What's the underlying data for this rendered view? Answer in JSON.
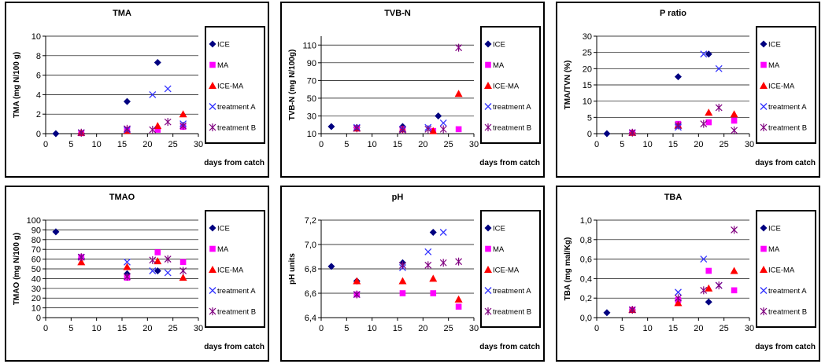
{
  "chart_data": [
    {
      "type": "scatter",
      "title": "TMA",
      "ylabel": "TMA (mg N/100 g)",
      "xlabel": "days from catch",
      "xlim": [
        0,
        30
      ],
      "xticks": [
        0,
        5,
        10,
        15,
        20,
        25,
        30
      ],
      "xtick_labels": [
        "0",
        "5",
        "10",
        "15",
        "20",
        "25",
        "30"
      ],
      "ylim": [
        0,
        10
      ],
      "yticks": [
        0,
        2,
        4,
        6,
        8,
        10
      ],
      "ytick_labels": [
        "0",
        "2",
        "4",
        "6",
        "8",
        "10"
      ],
      "grid": true,
      "legend": "right",
      "series": [
        {
          "name": "ICE",
          "color": "#000080",
          "marker": "diamond",
          "points": [
            [
              2,
              0
            ],
            [
              7,
              0.05
            ],
            [
              16,
              3.3
            ],
            [
              22,
              7.3
            ]
          ]
        },
        {
          "name": "MA",
          "color": "#FF00FF",
          "marker": "square",
          "points": [
            [
              7,
              0.05
            ],
            [
              16,
              0.4
            ],
            [
              22,
              0.4
            ],
            [
              27,
              0.7
            ]
          ]
        },
        {
          "name": "ICE-MA",
          "color": "#FF0000",
          "marker": "triangle",
          "points": [
            [
              7,
              0.1
            ],
            [
              16,
              0.3
            ],
            [
              22,
              0.8
            ],
            [
              27,
              2.0
            ]
          ]
        },
        {
          "name": "treatment A",
          "color": "#3333FF",
          "marker": "x",
          "points": [
            [
              7,
              0.1
            ],
            [
              16,
              0.4
            ],
            [
              21,
              4.0
            ],
            [
              24,
              4.6
            ],
            [
              27,
              1.0
            ]
          ]
        },
        {
          "name": "treatment B",
          "color": "#800080",
          "marker": "asterisk",
          "points": [
            [
              7,
              0.1
            ],
            [
              16,
              0.5
            ],
            [
              21,
              0.4
            ],
            [
              24,
              1.2
            ],
            [
              27,
              0.8
            ]
          ]
        }
      ]
    },
    {
      "type": "scatter",
      "title": "TVB-N",
      "ylabel": "TVB-N (mg N/100g)",
      "xlabel": "days from catch",
      "xlim": [
        0,
        30
      ],
      "xticks": [
        0,
        5,
        10,
        15,
        20,
        25,
        30
      ],
      "xtick_labels": [
        "0",
        "5",
        "10",
        "15",
        "20",
        "25",
        "30"
      ],
      "ylim": [
        10,
        120
      ],
      "yticks": [
        10,
        30,
        50,
        70,
        90,
        110
      ],
      "ytick_labels": [
        "10",
        "30",
        "50",
        "70",
        "90",
        "110"
      ],
      "grid": true,
      "legend": "right",
      "series": [
        {
          "name": "ICE",
          "color": "#000080",
          "marker": "diamond",
          "points": [
            [
              2,
              18
            ],
            [
              7,
              17
            ],
            [
              16,
              18
            ],
            [
              23,
              30
            ]
          ]
        },
        {
          "name": "MA",
          "color": "#FF00FF",
          "marker": "square",
          "points": [
            [
              7,
              16
            ],
            [
              16,
              15
            ],
            [
              22,
              13
            ],
            [
              27,
              15
            ]
          ]
        },
        {
          "name": "ICE-MA",
          "color": "#FF0000",
          "marker": "triangle",
          "points": [
            [
              7,
              16
            ],
            [
              16,
              15
            ],
            [
              22,
              13
            ],
            [
              27,
              55
            ]
          ]
        },
        {
          "name": "treatment A",
          "color": "#3333FF",
          "marker": "x",
          "points": [
            [
              7,
              17
            ],
            [
              16,
              15
            ],
            [
              21,
              17
            ],
            [
              24,
              22
            ]
          ]
        },
        {
          "name": "treatment B",
          "color": "#800080",
          "marker": "asterisk",
          "points": [
            [
              7,
              16
            ],
            [
              16,
              14
            ],
            [
              21,
              15
            ],
            [
              24,
              15
            ],
            [
              27,
              107
            ]
          ]
        }
      ]
    },
    {
      "type": "scatter",
      "title": "P ratio",
      "ylabel": "TMA/TVN (%)",
      "xlabel": "days from catch",
      "xlim": [
        0,
        30
      ],
      "xticks": [
        0,
        5,
        10,
        15,
        20,
        25,
        30
      ],
      "xtick_labels": [
        "0",
        "5",
        "10",
        "15",
        "20",
        "25",
        "30"
      ],
      "ylim": [
        0,
        30
      ],
      "yticks": [
        0,
        5,
        10,
        15,
        20,
        25,
        30
      ],
      "ytick_labels": [
        "0",
        "5",
        "10",
        "15",
        "20",
        "25",
        "30"
      ],
      "grid": true,
      "legend": "right",
      "series": [
        {
          "name": "ICE",
          "color": "#000080",
          "marker": "diamond",
          "points": [
            [
              2,
              0
            ],
            [
              7,
              0.3
            ],
            [
              16,
              17.5
            ],
            [
              22,
              24.5
            ]
          ]
        },
        {
          "name": "MA",
          "color": "#FF00FF",
          "marker": "square",
          "points": [
            [
              7,
              0.3
            ],
            [
              16,
              3
            ],
            [
              22,
              3.5
            ],
            [
              27,
              4
            ]
          ]
        },
        {
          "name": "ICE-MA",
          "color": "#FF0000",
          "marker": "triangle",
          "points": [
            [
              7,
              0.3
            ],
            [
              16,
              2.5
            ],
            [
              22,
              6.5
            ],
            [
              27,
              6
            ]
          ]
        },
        {
          "name": "treatment A",
          "color": "#3333FF",
          "marker": "x",
          "points": [
            [
              7,
              0.3
            ],
            [
              16,
              2
            ],
            [
              21,
              24.5
            ],
            [
              24,
              20
            ]
          ]
        },
        {
          "name": "treatment B",
          "color": "#800080",
          "marker": "asterisk",
          "points": [
            [
              7,
              0.3
            ],
            [
              16,
              2.5
            ],
            [
              21,
              3
            ],
            [
              24,
              8
            ],
            [
              27,
              1
            ]
          ]
        }
      ]
    },
    {
      "type": "scatter",
      "title": "TMAO",
      "ylabel": "TMAO (mg N/100 g)",
      "xlabel": "days from catch",
      "xlim": [
        0,
        30
      ],
      "xticks": [
        0,
        5,
        10,
        15,
        20,
        25,
        30
      ],
      "xtick_labels": [
        "0",
        "5",
        "10",
        "15",
        "20",
        "25",
        "30"
      ],
      "ylim": [
        0,
        100
      ],
      "yticks": [
        0,
        10,
        20,
        30,
        40,
        50,
        60,
        70,
        80,
        90,
        100
      ],
      "ytick_labels": [
        "0",
        "10",
        "20",
        "30",
        "40",
        "50",
        "60",
        "70",
        "80",
        "90",
        "100"
      ],
      "grid": true,
      "legend": "right",
      "series": [
        {
          "name": "ICE",
          "color": "#000080",
          "marker": "diamond",
          "points": [
            [
              2,
              88
            ],
            [
              7,
              61
            ],
            [
              16,
              45
            ],
            [
              22,
              48
            ]
          ]
        },
        {
          "name": "MA",
          "color": "#FF00FF",
          "marker": "square",
          "points": [
            [
              7,
              62
            ],
            [
              16,
              41
            ],
            [
              22,
              67
            ],
            [
              27,
              57
            ]
          ]
        },
        {
          "name": "ICE-MA",
          "color": "#FF0000",
          "marker": "triangle",
          "points": [
            [
              7,
              57
            ],
            [
              16,
              52
            ],
            [
              22,
              58
            ],
            [
              27,
              41
            ]
          ]
        },
        {
          "name": "treatment A",
          "color": "#3333FF",
          "marker": "x",
          "points": [
            [
              7,
              62
            ],
            [
              16,
              57
            ],
            [
              21,
              48
            ],
            [
              24,
              46
            ]
          ]
        },
        {
          "name": "treatment B",
          "color": "#800080",
          "marker": "asterisk",
          "points": [
            [
              7,
              62
            ],
            [
              16,
              42
            ],
            [
              21,
              59
            ],
            [
              24,
              60
            ],
            [
              27,
              48
            ]
          ]
        }
      ]
    },
    {
      "type": "scatter",
      "title": "pH",
      "ylabel": "pH units",
      "xlabel": "days from catch",
      "xlim": [
        0,
        30
      ],
      "xticks": [
        0,
        5,
        10,
        15,
        20,
        25,
        30
      ],
      "xtick_labels": [
        "0",
        "5",
        "10",
        "15",
        "20",
        "25",
        "30"
      ],
      "ylim": [
        6.4,
        7.2
      ],
      "yticks": [
        6.4,
        6.6,
        6.8,
        7.0,
        7.2
      ],
      "ytick_labels": [
        "6,4",
        "6,6",
        "6,8",
        "7,0",
        "7,2"
      ],
      "grid": false,
      "legend": "right",
      "series": [
        {
          "name": "ICE",
          "color": "#000080",
          "marker": "diamond",
          "points": [
            [
              2,
              6.82
            ],
            [
              7,
              6.7
            ],
            [
              16,
              6.85
            ],
            [
              22,
              7.1
            ]
          ]
        },
        {
          "name": "MA",
          "color": "#FF00FF",
          "marker": "square",
          "points": [
            [
              7,
              6.59
            ],
            [
              16,
              6.6
            ],
            [
              22,
              6.6
            ],
            [
              27,
              6.49
            ]
          ]
        },
        {
          "name": "ICE-MA",
          "color": "#FF0000",
          "marker": "triangle",
          "points": [
            [
              7,
              6.7
            ],
            [
              16,
              6.7
            ],
            [
              22,
              6.72
            ],
            [
              27,
              6.55
            ]
          ]
        },
        {
          "name": "treatment A",
          "color": "#3333FF",
          "marker": "x",
          "points": [
            [
              7,
              6.59
            ],
            [
              16,
              6.81
            ],
            [
              21,
              6.94
            ],
            [
              24,
              7.1
            ]
          ]
        },
        {
          "name": "treatment B",
          "color": "#800080",
          "marker": "asterisk",
          "points": [
            [
              7,
              6.59
            ],
            [
              16,
              6.83
            ],
            [
              21,
              6.83
            ],
            [
              24,
              6.85
            ],
            [
              27,
              6.86
            ]
          ]
        }
      ]
    },
    {
      "type": "scatter",
      "title": "TBA",
      "ylabel": "TBA (mg mal/Kg)",
      "xlabel": "days from catch",
      "xlim": [
        0,
        30
      ],
      "xticks": [
        0,
        5,
        10,
        15,
        20,
        25,
        30
      ],
      "xtick_labels": [
        "0",
        "5",
        "10",
        "15",
        "20",
        "25",
        "30"
      ],
      "ylim": [
        0,
        1.0
      ],
      "yticks": [
        0,
        0.2,
        0.4,
        0.6,
        0.8,
        1.0
      ],
      "ytick_labels": [
        "0,0",
        "0,2",
        "0,4",
        "0,6",
        "0,8",
        "1,0"
      ],
      "grid": false,
      "legend": "right",
      "series": [
        {
          "name": "ICE",
          "color": "#000080",
          "marker": "diamond",
          "points": [
            [
              2,
              0.05
            ],
            [
              7,
              0.08
            ],
            [
              16,
              0.18
            ],
            [
              22,
              0.16
            ]
          ]
        },
        {
          "name": "MA",
          "color": "#FF00FF",
          "marker": "square",
          "points": [
            [
              7,
              0.08
            ],
            [
              16,
              0.18
            ],
            [
              22,
              0.48
            ],
            [
              27,
              0.28
            ]
          ]
        },
        {
          "name": "ICE-MA",
          "color": "#FF0000",
          "marker": "triangle",
          "points": [
            [
              7,
              0.08
            ],
            [
              16,
              0.15
            ],
            [
              22,
              0.3
            ],
            [
              27,
              0.48
            ]
          ]
        },
        {
          "name": "treatment A",
          "color": "#3333FF",
          "marker": "x",
          "points": [
            [
              7,
              0.08
            ],
            [
              16,
              0.26
            ],
            [
              21,
              0.6
            ],
            [
              24,
              0.33
            ]
          ]
        },
        {
          "name": "treatment B",
          "color": "#800080",
          "marker": "asterisk",
          "points": [
            [
              7,
              0.08
            ],
            [
              16,
              0.2
            ],
            [
              21,
              0.28
            ],
            [
              24,
              0.33
            ],
            [
              27,
              0.9
            ]
          ]
        }
      ]
    }
  ]
}
